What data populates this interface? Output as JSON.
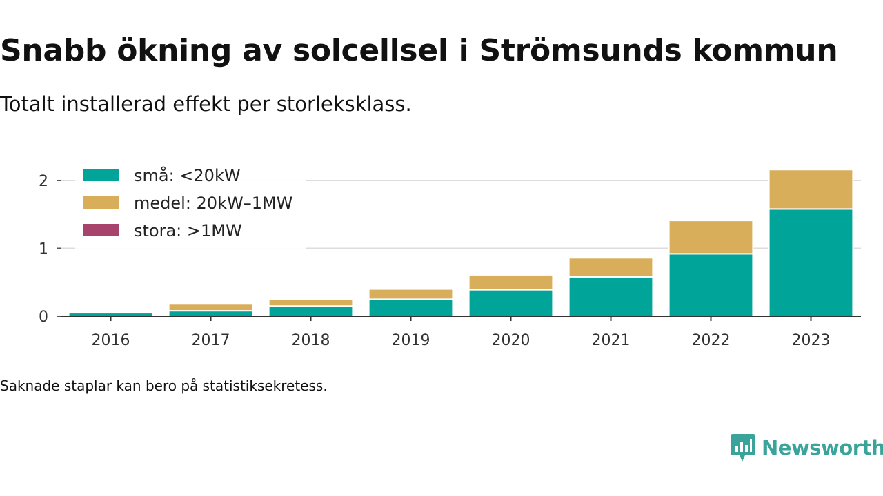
{
  "title": "Snabb ökning av solcellsel i Strömsunds kommun",
  "subtitle": "Totalt installerad effekt per storleksklass.",
  "footnote": "Saknade staplar kan bero på statistiksekretess.",
  "logo": {
    "text": "Newsworthy",
    "icon": "newsworthy-logo-icon",
    "color": "#3aa39a"
  },
  "chart_data": {
    "type": "bar",
    "stacked": true,
    "categories": [
      "2016",
      "2017",
      "2018",
      "2019",
      "2020",
      "2021",
      "2022",
      "2023"
    ],
    "series": [
      {
        "name": "små: <20kW",
        "color": "#00a499",
        "values": [
          0.05,
          0.08,
          0.15,
          0.25,
          0.39,
          0.58,
          0.92,
          1.58
        ]
      },
      {
        "name": "medel: 20kW–1MW",
        "color": "#d9ae5b",
        "values": [
          0.0,
          0.1,
          0.1,
          0.15,
          0.22,
          0.28,
          0.49,
          0.58
        ]
      },
      {
        "name": "stora: >1MW",
        "color": "#a8446b",
        "values": [
          0,
          0,
          0,
          0,
          0,
          0,
          0,
          0
        ]
      }
    ],
    "yticks": [
      "0",
      "1",
      "2"
    ],
    "ylim": [
      0,
      2.2
    ],
    "grid": true,
    "legend": "top-left"
  }
}
